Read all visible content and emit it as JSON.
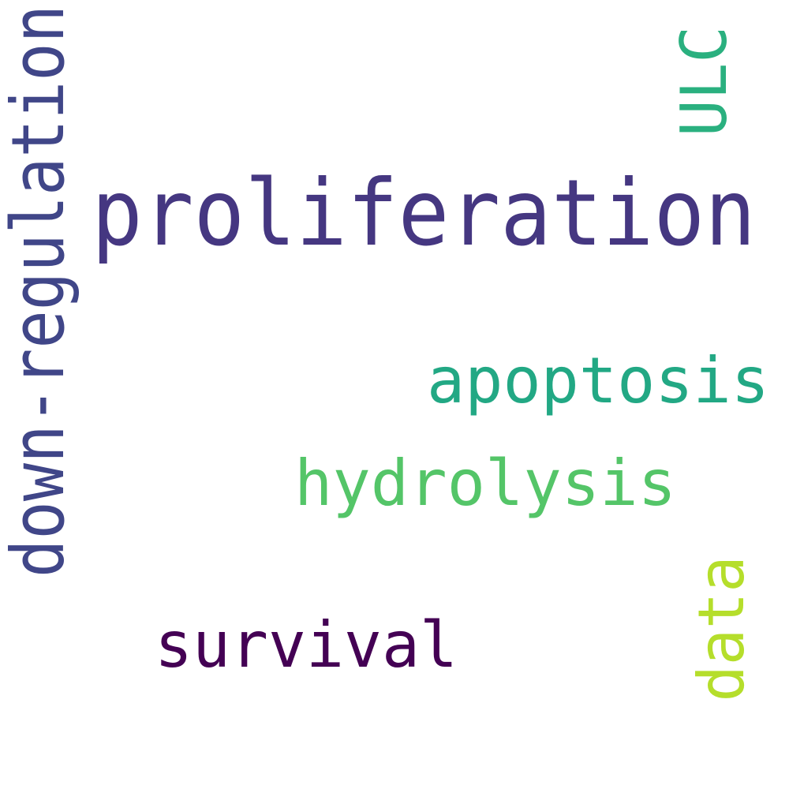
{
  "words": [
    {
      "key": "proliferation",
      "text": "proliferation",
      "color": "#453781"
    },
    {
      "key": "down-regulation",
      "text": "down-regulation",
      "color": "#404688"
    },
    {
      "key": "apoptosis",
      "text": "apoptosis",
      "color": "#22a884"
    },
    {
      "key": "hydrolysis",
      "text": "hydrolysis",
      "color": "#54c568"
    },
    {
      "key": "survival",
      "text": "survival",
      "color": "#440154"
    },
    {
      "key": "ulc",
      "text": "ULC",
      "color": "#2ab07f"
    },
    {
      "key": "data",
      "text": "data",
      "color": "#b5de2b"
    }
  ]
}
